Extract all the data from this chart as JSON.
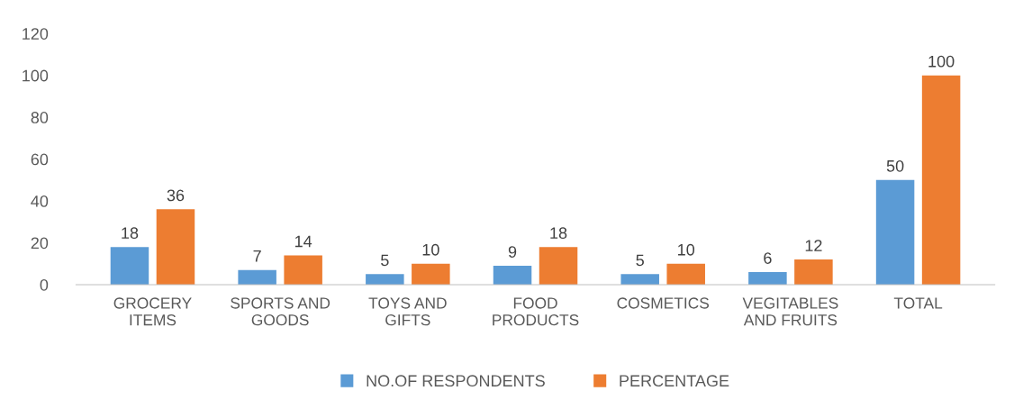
{
  "chart_data": {
    "type": "bar",
    "categories": [
      "GROCERY\nITEMS",
      "SPORTS AND\nGOODS",
      "TOYS AND\nGIFTS",
      "FOOD\nPRODUCTS",
      "COSMETICS",
      "VEGITABLES\nAND FRUITS",
      "TOTAL"
    ],
    "series": [
      {
        "name": "NO.OF RESPONDENTS",
        "color": "#5b9bd5",
        "values": [
          18,
          7,
          5,
          9,
          5,
          6,
          50
        ]
      },
      {
        "name": "PERCENTAGE",
        "color": "#ed7d31",
        "values": [
          36,
          14,
          10,
          18,
          10,
          12,
          100
        ]
      }
    ],
    "ylim": [
      0,
      120
    ],
    "yticks": [
      0,
      20,
      40,
      60,
      80,
      100,
      120
    ],
    "data_labels": true,
    "legend": "bottom",
    "grid": false
  }
}
